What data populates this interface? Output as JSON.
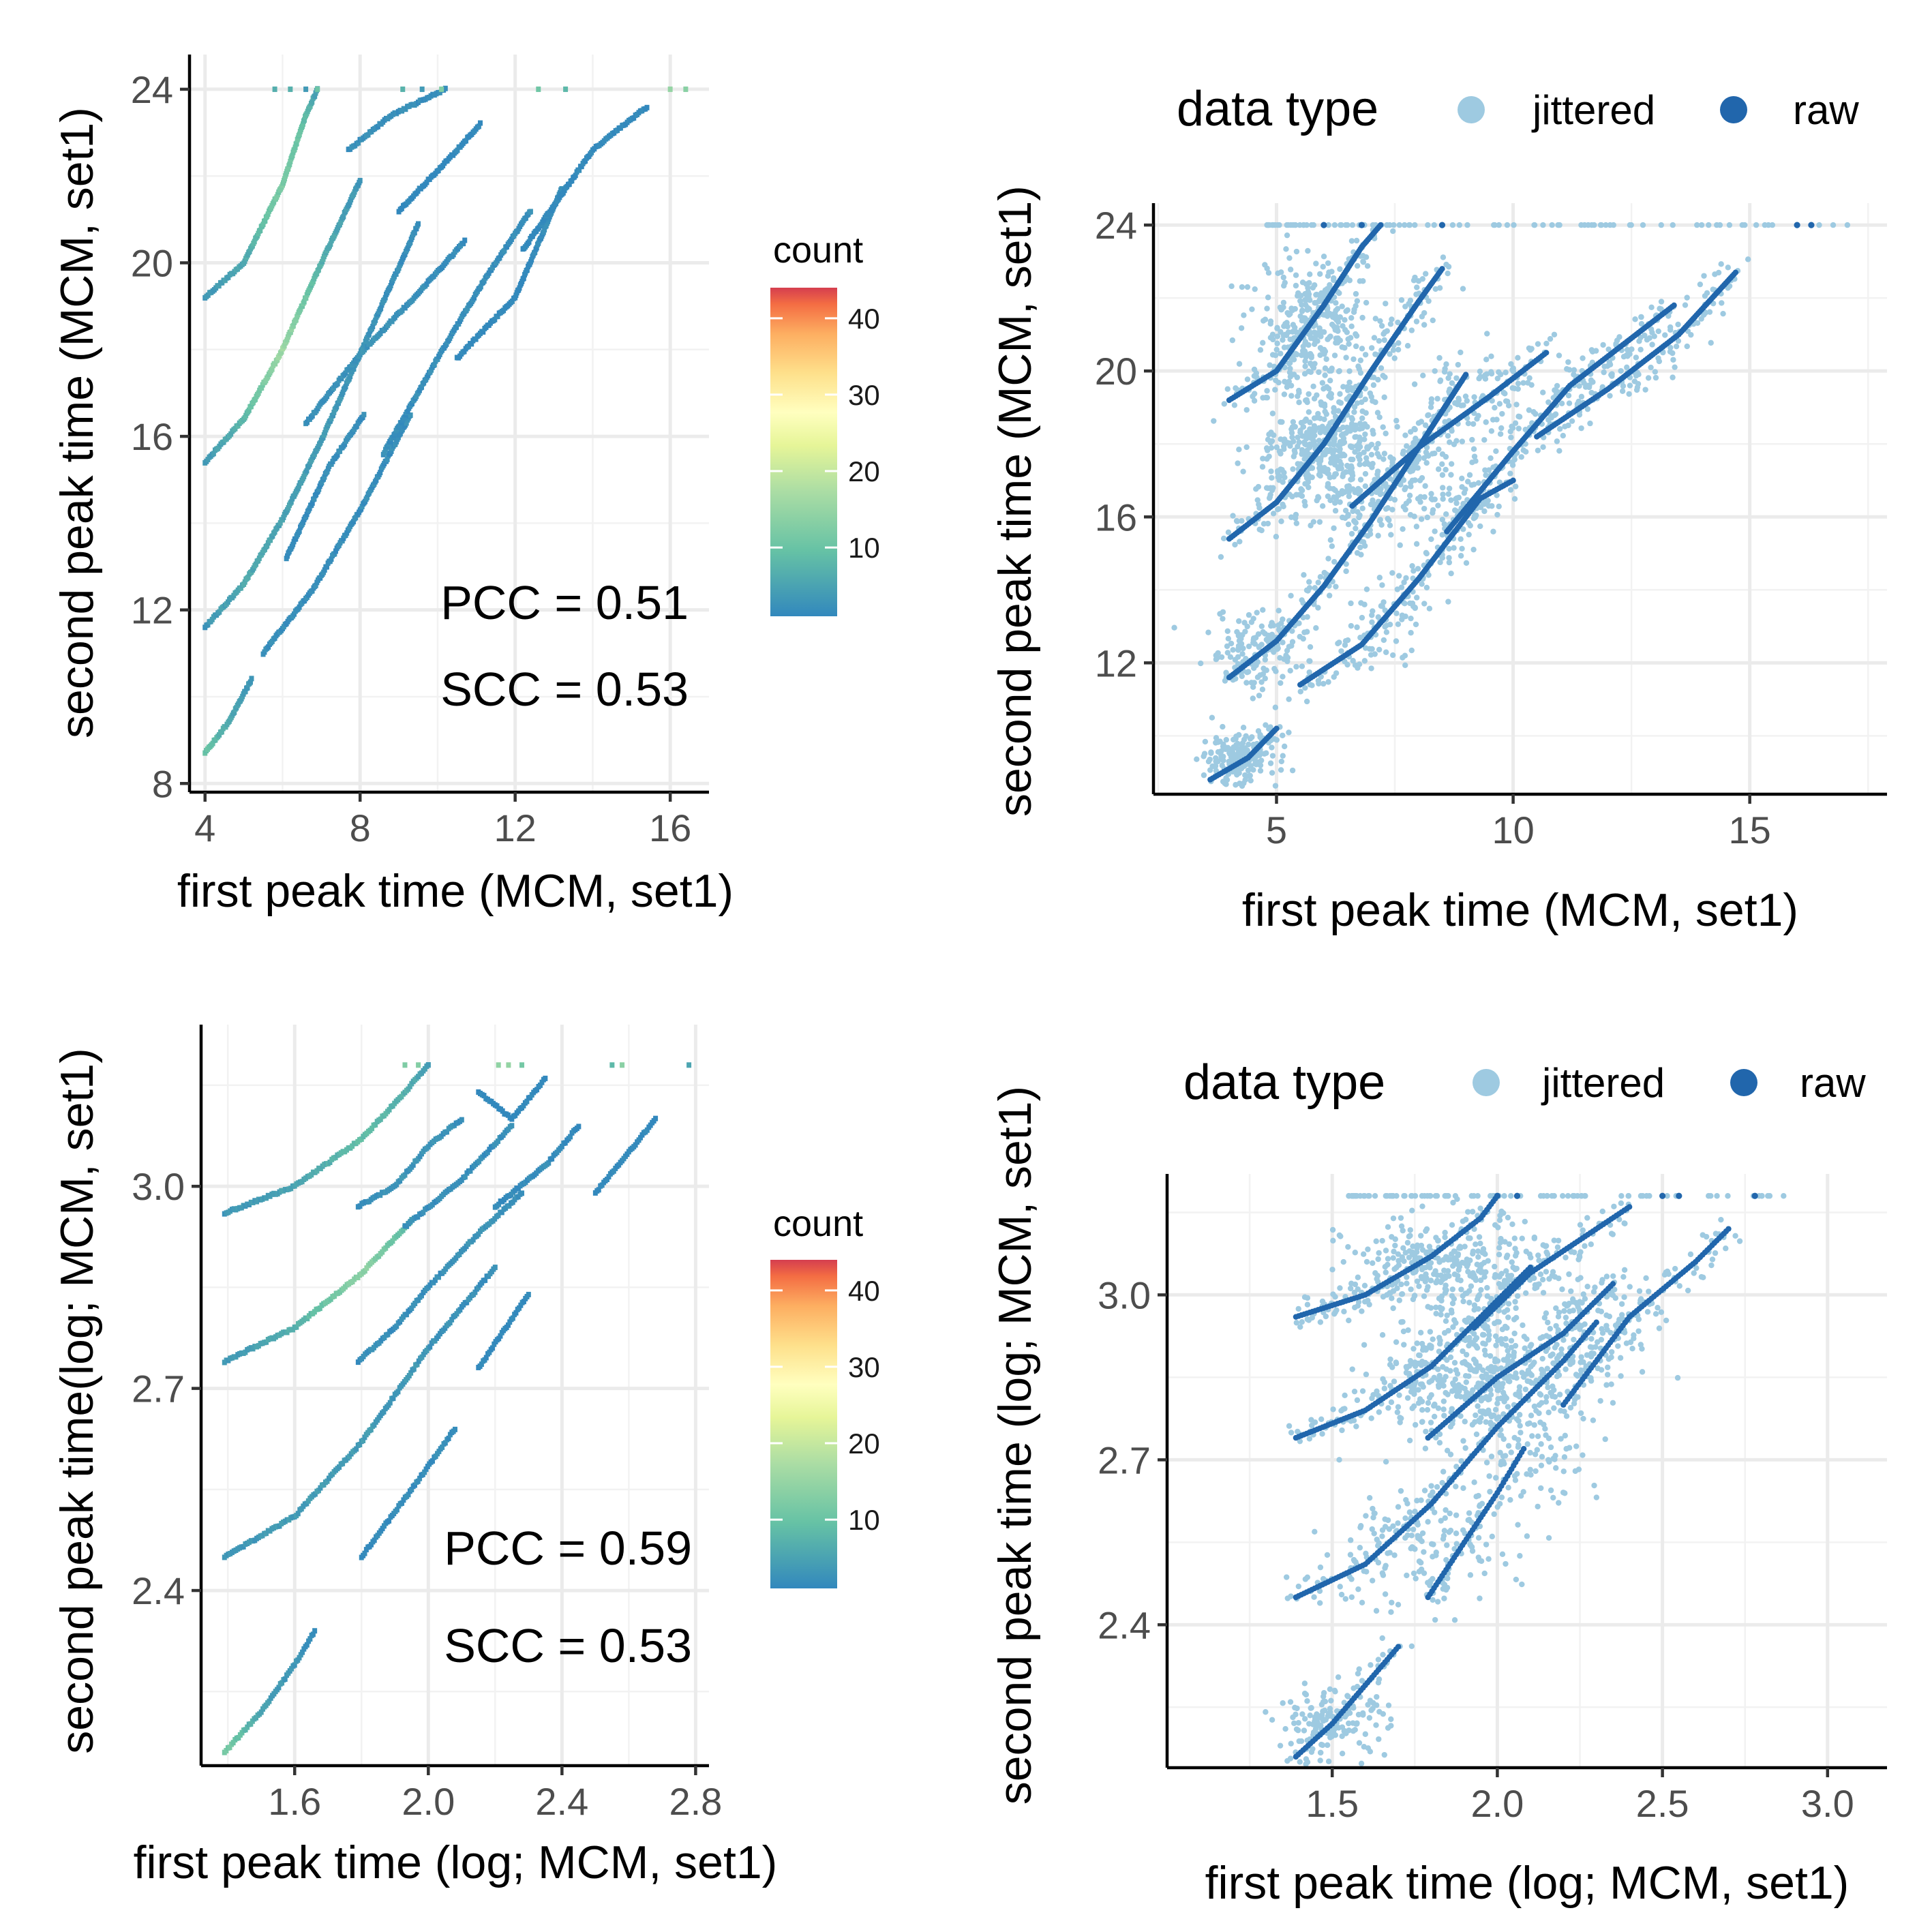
{
  "colors": {
    "jittered": "#9ecae1",
    "raw": "#2166ac",
    "spectral_low": "#3288bd",
    "spectral_mid": "#ffffbf",
    "spectral_high": "#d53e4f"
  },
  "chart_data": [
    {
      "id": "top-left",
      "type": "heatmap",
      "title": "",
      "xlabel": "first peak time (MCM, set1)",
      "ylabel": "second peak time (MCM, set1)",
      "xlim": [
        3.6,
        17.0
      ],
      "ylim": [
        7.8,
        24.8
      ],
      "xticks": [
        4,
        8,
        12,
        16
      ],
      "xtick_labels": [
        "4",
        "8",
        "12",
        "16"
      ],
      "yticks": [
        8,
        12,
        16,
        20,
        24
      ],
      "ytick_labels": [
        "8",
        "12",
        "16",
        "20",
        "24"
      ],
      "grid": true,
      "colorbar": {
        "title": "count",
        "range": [
          1,
          44
        ],
        "ticks": [
          10,
          20,
          30,
          40
        ],
        "tick_labels": [
          "10",
          "20",
          "30",
          "40"
        ]
      },
      "annotations": [
        {
          "text": "PCC = 0.51"
        },
        {
          "text": "SCC = 0.53"
        }
      ],
      "bands": [
        {
          "x": [
            4.0,
            5.0,
            6.0,
            6.6,
            6.9
          ],
          "y": [
            19.2,
            20.0,
            21.8,
            23.4,
            24.0
          ],
          "count": [
            3,
            6,
            12,
            9,
            4
          ]
        },
        {
          "x": [
            4.0,
            5.0,
            6.0,
            7.0,
            8.0
          ],
          "y": [
            15.4,
            16.4,
            18.0,
            20.0,
            21.9
          ],
          "count": [
            3,
            8,
            16,
            7,
            3
          ]
        },
        {
          "x": [
            4.0,
            5.0,
            6.0,
            7.0,
            8.0,
            9.0,
            9.5
          ],
          "y": [
            11.6,
            12.6,
            14.1,
            15.9,
            17.9,
            19.9,
            20.9
          ],
          "count": [
            3,
            6,
            5,
            4,
            3,
            2,
            2
          ]
        },
        {
          "x": [
            4.0,
            4.6,
            5.2
          ],
          "y": [
            8.7,
            9.4,
            10.4
          ],
          "count": [
            10,
            6,
            3
          ]
        },
        {
          "x": [
            5.5,
            6.8,
            8.0,
            9.3
          ],
          "y": [
            11.0,
            12.5,
            14.3,
            16.5
          ],
          "count": [
            2,
            2,
            2,
            2
          ]
        },
        {
          "x": [
            6.6,
            8.0,
            9.5,
            10.7
          ],
          "y": [
            16.3,
            17.9,
            19.3,
            20.5
          ],
          "count": [
            2,
            3,
            2,
            2
          ]
        },
        {
          "x": [
            8.6,
            10.0,
            11.2,
            12.4
          ],
          "y": [
            15.6,
            17.8,
            19.6,
            21.2
          ],
          "count": [
            2,
            2,
            2,
            2
          ]
        },
        {
          "x": [
            7.7,
            8.8,
            10.2
          ],
          "y": [
            22.6,
            23.4,
            24.0
          ],
          "count": [
            2,
            2,
            2
          ]
        },
        {
          "x": [
            10.5,
            12.0,
            13.2
          ],
          "y": [
            17.8,
            19.2,
            21.7
          ],
          "count": [
            1,
            1,
            2
          ]
        },
        {
          "x": [
            6.1,
            7.2,
            8.1
          ],
          "y": [
            13.2,
            15.3,
            16.5
          ],
          "count": [
            1,
            2,
            2
          ]
        },
        {
          "x": [
            12.2,
            14.0,
            15.4
          ],
          "y": [
            20.3,
            22.6,
            23.6
          ],
          "count": [
            1,
            1,
            1
          ]
        },
        {
          "x": [
            9.0,
            10.4,
            11.1
          ],
          "y": [
            21.2,
            22.5,
            23.2
          ],
          "count": [
            1,
            1,
            1
          ]
        }
      ],
      "top_row": {
        "y": 24.0,
        "x": [
          5.8,
          6.2,
          6.6,
          6.9,
          9.1,
          9.6,
          10.1,
          12.6,
          13.3,
          16.0,
          16.4
        ]
      }
    },
    {
      "id": "top-right",
      "type": "scatter",
      "title": "",
      "xlabel": "first peak time (MCM, set1)",
      "ylabel": "second peak time (MCM, set1)",
      "xlim": [
        2.4,
        17.9
      ],
      "ylim": [
        8.4,
        24.6
      ],
      "xticks": [
        5,
        10,
        15
      ],
      "xtick_labels": [
        "5",
        "10",
        "15"
      ],
      "yticks": [
        12,
        16,
        20,
        24
      ],
      "ytick_labels": [
        "12",
        "16",
        "20",
        "24"
      ],
      "grid": true,
      "legend": {
        "title": "data type",
        "position": "top",
        "entries": [
          "jittered",
          "raw"
        ]
      },
      "raw_bands": [
        {
          "x": [
            4.0,
            5.0,
            6.0,
            6.8,
            7.2
          ],
          "y": [
            19.2,
            20.0,
            21.8,
            23.4,
            24.0
          ]
        },
        {
          "x": [
            4.0,
            5.0,
            6.0,
            7.0,
            8.0,
            8.5
          ],
          "y": [
            15.4,
            16.4,
            18.0,
            20.0,
            21.9,
            22.8
          ]
        },
        {
          "x": [
            4.0,
            5.0,
            6.0,
            7.0,
            8.0,
            9.0
          ],
          "y": [
            11.6,
            12.6,
            14.1,
            15.9,
            17.9,
            19.9
          ]
        },
        {
          "x": [
            6.6,
            8.0,
            9.5,
            10.7
          ],
          "y": [
            16.3,
            17.9,
            19.3,
            20.5
          ]
        },
        {
          "x": [
            5.5,
            6.8,
            8.0,
            9.3,
            10.0
          ],
          "y": [
            11.4,
            12.5,
            14.3,
            16.5,
            17.0
          ]
        },
        {
          "x": [
            8.6,
            10.0,
            11.2,
            12.4,
            13.4
          ],
          "y": [
            15.6,
            17.8,
            19.6,
            20.8,
            21.8
          ]
        },
        {
          "x": [
            10.5,
            12.0,
            13.5,
            14.7
          ],
          "y": [
            18.2,
            19.5,
            21.0,
            22.7
          ]
        },
        {
          "x": [
            3.6,
            4.4,
            5.0
          ],
          "y": [
            8.8,
            9.4,
            10.2
          ]
        }
      ],
      "jitter_clusters": [
        {
          "cx": 5.8,
          "cy": 21.2,
          "sx": 0.9,
          "sy": 1.3,
          "n": 300
        },
        {
          "cx": 6.0,
          "cy": 17.8,
          "sx": 1.0,
          "sy": 1.3,
          "n": 380
        },
        {
          "cx": 4.6,
          "cy": 12.3,
          "sx": 0.8,
          "sy": 0.8,
          "n": 120
        },
        {
          "cx": 4.2,
          "cy": 9.4,
          "sx": 0.6,
          "sy": 0.5,
          "n": 150
        },
        {
          "cx": 7.9,
          "cy": 16.8,
          "sx": 1.0,
          "sy": 1.3,
          "n": 110
        },
        {
          "cx": 9.7,
          "cy": 19.5,
          "sx": 1.0,
          "sy": 1.0,
          "n": 60
        },
        {
          "cx": 7.3,
          "cy": 13.0,
          "sx": 0.8,
          "sy": 0.8,
          "n": 40
        },
        {
          "cx": 12.2,
          "cy": 20.0,
          "sx": 0.8,
          "sy": 0.5,
          "n": 20
        }
      ],
      "top_row": {
        "y": 24.0,
        "xmin": 4.8,
        "xmax": 17.4,
        "raw_x": [
          6.0,
          6.8,
          8.5,
          16.0,
          16.3
        ]
      }
    },
    {
      "id": "bottom-left",
      "type": "heatmap",
      "title": "",
      "xlabel": "first peak time (log; MCM, set1)",
      "ylabel": "second peak time(log; MCM, set1)",
      "xlim": [
        1.32,
        2.84
      ],
      "ylim": [
        2.14,
        3.24
      ],
      "xticks": [
        1.6,
        2.0,
        2.4,
        2.8
      ],
      "xtick_labels": [
        "1.6",
        "2.0",
        "2.4",
        "2.8"
      ],
      "yticks": [
        2.4,
        2.7,
        3.0
      ],
      "ytick_labels": [
        "2.4",
        "2.7",
        "3.0"
      ],
      "grid": true,
      "colorbar": {
        "title": "count",
        "range": [
          1,
          44
        ],
        "ticks": [
          10,
          20,
          30,
          40
        ],
        "tick_labels": [
          "10",
          "20",
          "30",
          "40"
        ]
      },
      "annotations": [
        {
          "text": "PCC = 0.59"
        },
        {
          "text": "SCC = 0.53"
        }
      ],
      "bands": [
        {
          "x": [
            1.39,
            1.6,
            1.8,
            1.93,
            2.0
          ],
          "y": [
            2.96,
            3.0,
            3.07,
            3.14,
            3.18
          ],
          "count": [
            3,
            5,
            9,
            7,
            4
          ]
        },
        {
          "x": [
            1.39,
            1.6,
            1.8,
            1.95
          ],
          "y": [
            2.74,
            2.79,
            2.87,
            2.95
          ],
          "count": [
            3,
            7,
            14,
            8
          ]
        },
        {
          "x": [
            1.39,
            1.6,
            1.8,
            2.0,
            2.2
          ],
          "y": [
            2.45,
            2.51,
            2.62,
            2.76,
            2.88
          ],
          "count": [
            3,
            4,
            4,
            3,
            2
          ]
        },
        {
          "x": [
            1.39,
            1.5,
            1.6,
            1.66
          ],
          "y": [
            2.16,
            2.22,
            2.29,
            2.34
          ],
          "count": [
            12,
            5,
            3,
            2
          ]
        },
        {
          "x": [
            1.79,
            1.9,
            2.0,
            2.1
          ],
          "y": [
            2.97,
            3.0,
            3.06,
            3.1
          ],
          "count": [
            2,
            3,
            3,
            2
          ]
        },
        {
          "x": [
            1.79,
            1.9,
            2.0,
            2.15,
            2.28
          ],
          "y": [
            2.74,
            2.79,
            2.85,
            2.93,
            2.99
          ],
          "count": [
            2,
            2,
            2,
            3,
            2
          ]
        },
        {
          "x": [
            1.8,
            1.95,
            2.08
          ],
          "y": [
            2.45,
            2.55,
            2.64
          ],
          "count": [
            1,
            2,
            2
          ]
        },
        {
          "x": [
            1.93,
            2.1,
            2.25
          ],
          "y": [
            2.94,
            3.01,
            3.09
          ],
          "count": [
            2,
            2,
            2
          ]
        },
        {
          "x": [
            2.2,
            2.35,
            2.45
          ],
          "y": [
            2.97,
            3.03,
            3.09
          ],
          "count": [
            1,
            2,
            1
          ]
        },
        {
          "x": [
            2.15,
            2.3
          ],
          "y": [
            2.73,
            2.84
          ],
          "count": [
            1,
            1
          ]
        },
        {
          "x": [
            2.5,
            2.6,
            2.68
          ],
          "y": [
            2.99,
            3.05,
            3.1
          ],
          "count": [
            1,
            1,
            1
          ]
        },
        {
          "x": [
            2.15,
            2.25,
            2.35
          ],
          "y": [
            3.14,
            3.1,
            3.16
          ],
          "count": [
            1,
            1,
            1
          ]
        }
      ],
      "top_row": {
        "y": 3.18,
        "x": [
          1.93,
          1.97,
          2.0,
          2.21,
          2.24,
          2.28,
          2.55,
          2.58,
          2.78
        ]
      }
    },
    {
      "id": "bottom-right",
      "type": "scatter",
      "title": "",
      "xlabel": "first peak time (log; MCM, set1)",
      "ylabel": "second peak time (log; MCM, set1)",
      "xlim": [
        1.0,
        3.18
      ],
      "ylim": [
        2.14,
        3.22
      ],
      "xticks": [
        1.5,
        2.0,
        2.5,
        3.0
      ],
      "xtick_labels": [
        "1.5",
        "2.0",
        "2.5",
        "3.0"
      ],
      "yticks": [
        2.4,
        2.7,
        3.0
      ],
      "ytick_labels": [
        "2.4",
        "2.7",
        "3.0"
      ],
      "grid": true,
      "legend": {
        "title": "data type",
        "position": "top",
        "entries": [
          "jittered",
          "raw"
        ]
      },
      "raw_bands": [
        {
          "x": [
            1.39,
            1.6,
            1.8,
            1.95,
            2.0
          ],
          "y": [
            2.96,
            3.0,
            3.07,
            3.14,
            3.18
          ]
        },
        {
          "x": [
            1.39,
            1.6,
            1.8,
            2.0,
            2.1
          ],
          "y": [
            2.74,
            2.79,
            2.87,
            2.99,
            3.05
          ]
        },
        {
          "x": [
            1.39,
            1.6,
            1.8,
            2.0,
            2.2,
            2.3
          ],
          "y": [
            2.45,
            2.51,
            2.62,
            2.76,
            2.88,
            2.95
          ]
        },
        {
          "x": [
            1.39,
            1.5,
            1.6,
            1.7
          ],
          "y": [
            2.16,
            2.22,
            2.29,
            2.36
          ]
        },
        {
          "x": [
            1.79,
            2.0,
            2.2,
            2.35
          ],
          "y": [
            2.74,
            2.85,
            2.93,
            3.02
          ]
        },
        {
          "x": [
            1.79,
            1.9,
            2.0,
            2.08
          ],
          "y": [
            2.45,
            2.55,
            2.64,
            2.72
          ]
        },
        {
          "x": [
            1.93,
            2.1,
            2.25,
            2.4
          ],
          "y": [
            2.94,
            3.04,
            3.1,
            3.16
          ]
        },
        {
          "x": [
            2.2,
            2.4,
            2.6,
            2.7
          ],
          "y": [
            2.8,
            2.96,
            3.06,
            3.12
          ]
        }
      ],
      "jitter_clusters": [
        {
          "cx": 1.85,
          "cy": 3.04,
          "sx": 0.22,
          "sy": 0.07,
          "n": 340
        },
        {
          "cx": 1.95,
          "cy": 2.85,
          "sx": 0.23,
          "sy": 0.07,
          "n": 360
        },
        {
          "cx": 1.75,
          "cy": 2.54,
          "sx": 0.22,
          "sy": 0.08,
          "n": 130
        },
        {
          "cx": 1.5,
          "cy": 2.22,
          "sx": 0.12,
          "sy": 0.04,
          "n": 140
        },
        {
          "cx": 2.3,
          "cy": 2.95,
          "sx": 0.18,
          "sy": 0.08,
          "n": 90
        },
        {
          "cx": 2.15,
          "cy": 2.7,
          "sx": 0.12,
          "sy": 0.06,
          "n": 50
        }
      ],
      "top_row": {
        "y": 3.18,
        "xmin": 1.55,
        "xmax": 2.88,
        "raw_x": [
          2.0,
          2.06,
          2.5,
          2.55,
          2.78
        ]
      }
    }
  ]
}
